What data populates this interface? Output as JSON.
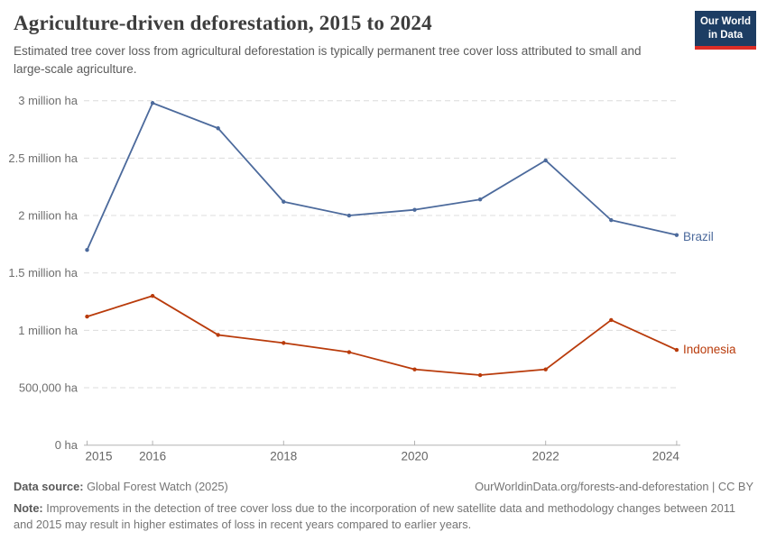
{
  "header": {
    "title": "Agriculture-driven deforestation, 2015 to 2024",
    "subtitle": "Estimated tree cover loss from agricultural deforestation is typically permanent tree cover loss attributed to small and large-scale agriculture.",
    "logo": {
      "line1": "Our World",
      "line2": "in Data"
    }
  },
  "chart_data": {
    "type": "line",
    "title": "Agriculture-driven deforestation, 2015 to 2024",
    "unit": "ha",
    "x": [
      2015,
      2016,
      2017,
      2018,
      2019,
      2020,
      2021,
      2022,
      2023,
      2024
    ],
    "series": [
      {
        "name": "Brazil",
        "color": "#4C6A9C",
        "values_million_ha": [
          1.7,
          2.98,
          2.76,
          2.12,
          2.0,
          2.05,
          2.14,
          2.48,
          1.96,
          1.83
        ]
      },
      {
        "name": "Indonesia",
        "color": "#B93B0B",
        "values_million_ha": [
          1.12,
          1.3,
          0.96,
          0.89,
          0.81,
          0.66,
          0.61,
          0.66,
          1.09,
          0.83
        ]
      }
    ],
    "y_ticks": [
      {
        "value": 0,
        "label": "0 ha"
      },
      {
        "value": 0.5,
        "label": "500,000 ha"
      },
      {
        "value": 1,
        "label": "1 million ha"
      },
      {
        "value": 1.5,
        "label": "1.5 million ha"
      },
      {
        "value": 2,
        "label": "2 million ha"
      },
      {
        "value": 2.5,
        "label": "2.5 million ha"
      },
      {
        "value": 3,
        "label": "3 million ha"
      }
    ],
    "x_ticks": [
      2015,
      2016,
      2018,
      2020,
      2022,
      2024
    ],
    "ylim": [
      0,
      3
    ],
    "grid": "horizontal-dashed",
    "legend_position": "end-of-line-labels",
    "colors": {
      "gridline": "#dcdcdc",
      "axis": "#b3b3b3"
    }
  },
  "footer": {
    "source_label": "Data source:",
    "source_text": " Global Forest Watch (2025)",
    "link": "OurWorldinData.org/forests-and-deforestation | CC BY",
    "note_label": "Note:",
    "note_text": " Improvements in the detection of tree cover loss due to the incorporation of new satellite data and methodology changes between 2011 and 2015 may result in higher estimates of loss in recent years compared to earlier years."
  }
}
